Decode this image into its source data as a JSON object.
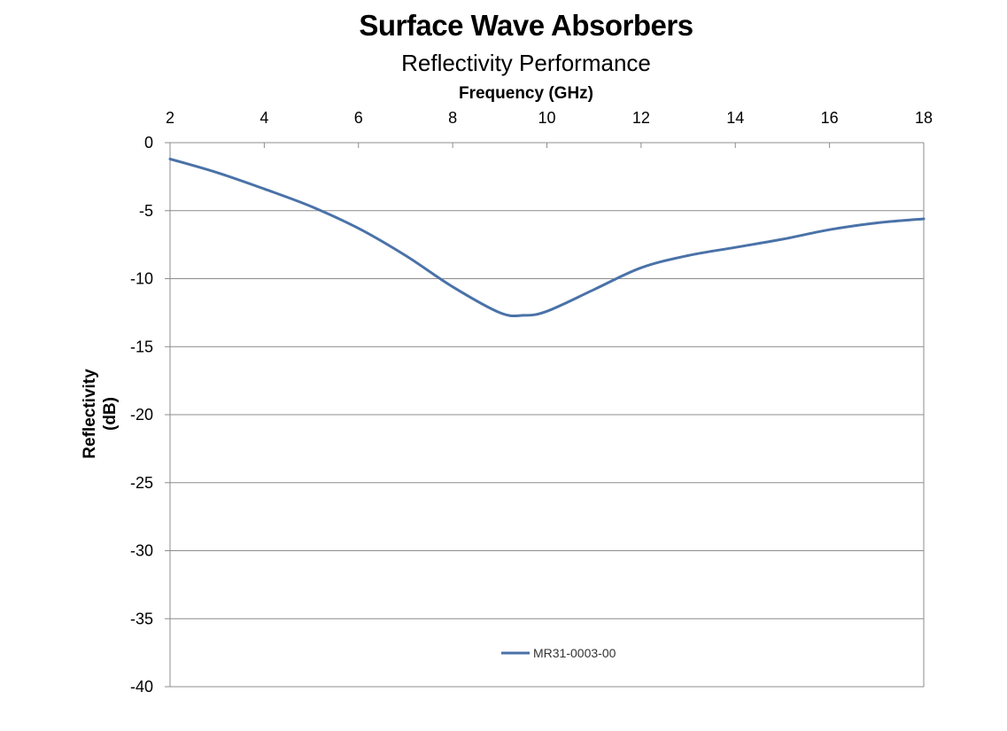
{
  "chart_data": {
    "type": "line",
    "title": "Surface Wave Absorbers",
    "subtitle": "Reflectivity Performance",
    "xlabel": "Frequency (GHz)",
    "ylabel_lines": [
      "Reflectivity",
      "(dB)"
    ],
    "xlim": [
      2,
      18
    ],
    "ylim": [
      -40,
      0
    ],
    "x_ticks": [
      2,
      4,
      6,
      8,
      10,
      12,
      14,
      16,
      18
    ],
    "y_ticks": [
      0,
      -5,
      -10,
      -15,
      -20,
      -25,
      -30,
      -35,
      -40
    ],
    "x_axis_position": "top",
    "grid": "horizontal",
    "legend": "bottom-center",
    "series": [
      {
        "name": "MR31-0003-00",
        "color": "#4A72A8",
        "x": [
          2,
          3,
          4,
          5,
          6,
          7,
          8,
          9,
          9.5,
          10,
          11,
          12,
          13,
          14,
          15,
          16,
          17,
          18
        ],
        "y": [
          -1.2,
          -2.2,
          -3.4,
          -4.7,
          -6.3,
          -8.3,
          -10.6,
          -12.5,
          -12.7,
          -12.4,
          -10.8,
          -9.2,
          -8.3,
          -7.7,
          -7.1,
          -6.4,
          -5.9,
          -5.6
        ]
      }
    ]
  }
}
